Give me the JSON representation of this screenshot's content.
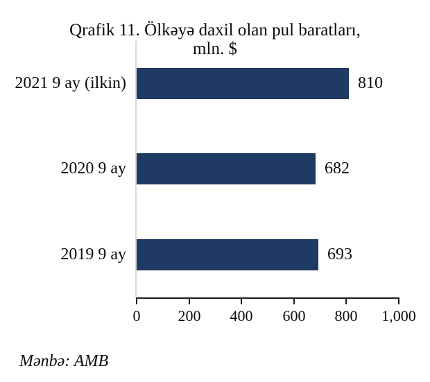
{
  "chart_data": {
    "type": "bar",
    "orientation": "horizontal",
    "title_line1": "Qrafik 11. Ölkəyə daxil olan pul baratları,",
    "title_line2": "mln. $",
    "categories": [
      "2021 9 ay (ilkin)",
      "2020 9 ay",
      "2019 9 ay"
    ],
    "values": [
      810,
      682,
      693
    ],
    "value_labels": [
      "810",
      "682",
      "693"
    ],
    "x_ticks": [
      "0",
      "200",
      "400",
      "600",
      "800",
      "1,000"
    ],
    "xlim": [
      0,
      1000
    ],
    "legend": "none",
    "grid": "off",
    "bar_color": "#1f3a63",
    "axis_line_color": "#1a1a1a",
    "baseline_color": "#d9d9d9",
    "source": "Mənbə: AMB"
  }
}
